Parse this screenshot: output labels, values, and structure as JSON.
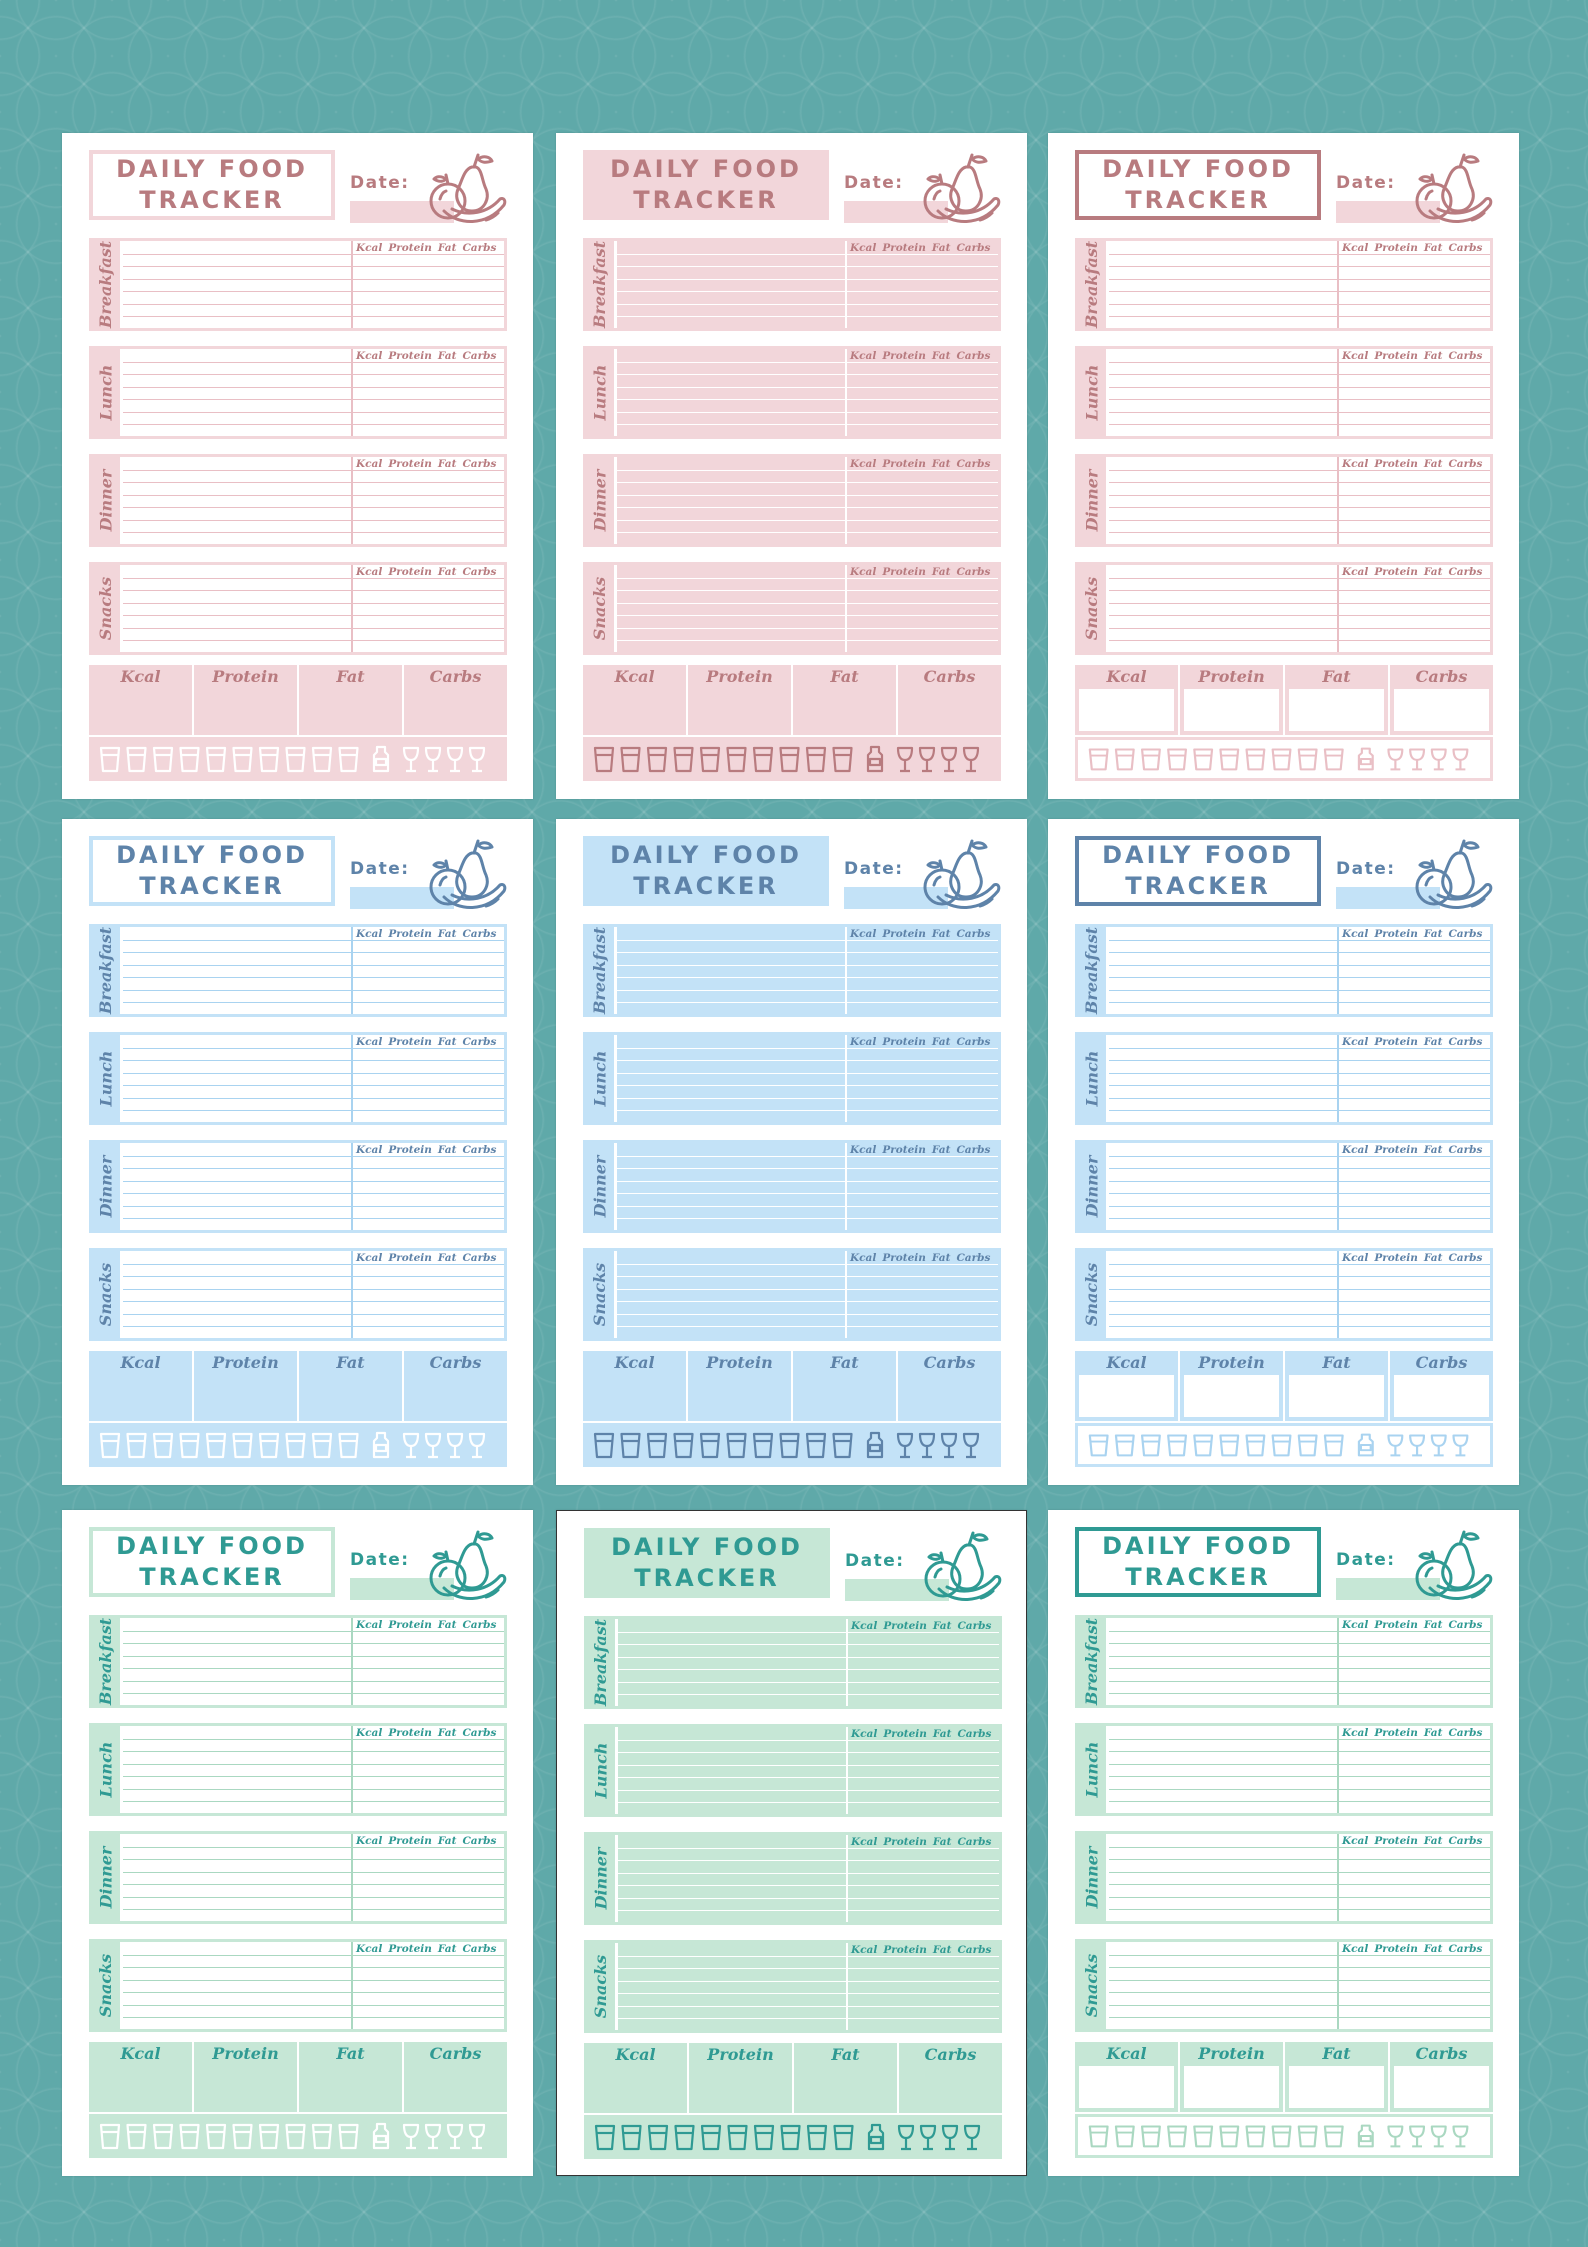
{
  "tracker": {
    "title_line1": "DAILY FOOD",
    "title_line2": "TRACKER",
    "date_label": "Date:",
    "meals": [
      "Breakfast",
      "Lunch",
      "Dinner",
      "Snacks"
    ],
    "macro_headers": [
      "Kcal",
      "Protein",
      "Fat",
      "Carbs"
    ],
    "totals_labels": [
      "Kcal",
      "Protein",
      "Fat",
      "Carbs"
    ]
  },
  "colors": {
    "background": "#5fa9a9",
    "pink_text": "#b87b7f",
    "pink_fill": "#f2d6da",
    "pink_line": "#e9bfc5",
    "blue_text": "#5e83a9",
    "blue_fill": "#c3e2f7",
    "blue_line": "#a9d3f0",
    "green_text": "#2f9a93",
    "green_fill": "#c6e7d6",
    "green_line": "#aad8c1"
  },
  "icons": [
    "fruit-pear-apple-banana-icon",
    "water-glass-icon",
    "water-bottle-icon",
    "wine-glass-icon"
  ],
  "pages": [
    {
      "theme": "pink",
      "style": "outline"
    },
    {
      "theme": "pink",
      "style": "filled"
    },
    {
      "theme": "pink",
      "style": "bold-outline"
    },
    {
      "theme": "blue",
      "style": "outline"
    },
    {
      "theme": "blue",
      "style": "filled"
    },
    {
      "theme": "blue",
      "style": "bold-outline"
    },
    {
      "theme": "green",
      "style": "outline"
    },
    {
      "theme": "green",
      "style": "filled"
    },
    {
      "theme": "green",
      "style": "bold-outline"
    }
  ]
}
